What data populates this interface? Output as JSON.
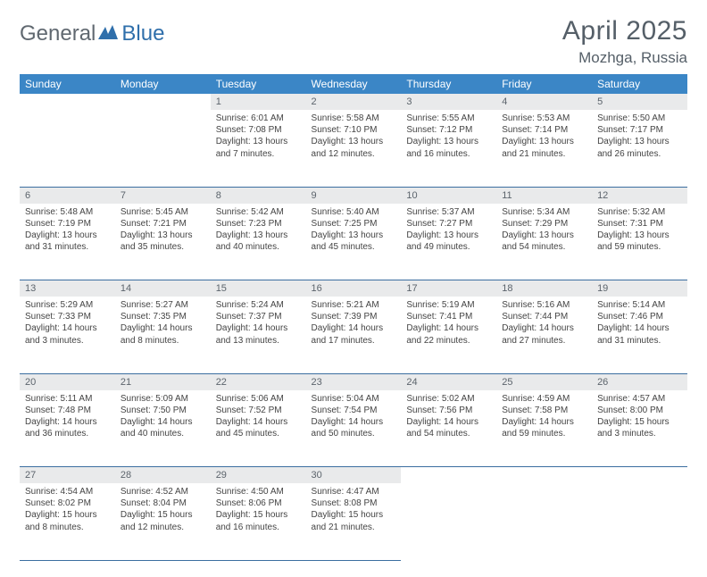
{
  "brand": {
    "part1": "General",
    "part2": "Blue"
  },
  "title": "April 2025",
  "location": "Mozhga, Russia",
  "colors": {
    "header_bg": "#3b86c6",
    "header_fg": "#ffffff",
    "daynum_bg": "#e9eaeb",
    "rule": "#3b6ea0",
    "brand_gray": "#606870",
    "brand_blue": "#2f6fab"
  },
  "weekdays": [
    "Sunday",
    "Monday",
    "Tuesday",
    "Wednesday",
    "Thursday",
    "Friday",
    "Saturday"
  ],
  "weeks": [
    {
      "days": [
        {
          "n": "",
          "sunrise": "",
          "sunset": "",
          "daylight": ""
        },
        {
          "n": "",
          "sunrise": "",
          "sunset": "",
          "daylight": ""
        },
        {
          "n": "1",
          "sunrise": "Sunrise: 6:01 AM",
          "sunset": "Sunset: 7:08 PM",
          "daylight": "Daylight: 13 hours and 7 minutes."
        },
        {
          "n": "2",
          "sunrise": "Sunrise: 5:58 AM",
          "sunset": "Sunset: 7:10 PM",
          "daylight": "Daylight: 13 hours and 12 minutes."
        },
        {
          "n": "3",
          "sunrise": "Sunrise: 5:55 AM",
          "sunset": "Sunset: 7:12 PM",
          "daylight": "Daylight: 13 hours and 16 minutes."
        },
        {
          "n": "4",
          "sunrise": "Sunrise: 5:53 AM",
          "sunset": "Sunset: 7:14 PM",
          "daylight": "Daylight: 13 hours and 21 minutes."
        },
        {
          "n": "5",
          "sunrise": "Sunrise: 5:50 AM",
          "sunset": "Sunset: 7:17 PM",
          "daylight": "Daylight: 13 hours and 26 minutes."
        }
      ]
    },
    {
      "days": [
        {
          "n": "6",
          "sunrise": "Sunrise: 5:48 AM",
          "sunset": "Sunset: 7:19 PM",
          "daylight": "Daylight: 13 hours and 31 minutes."
        },
        {
          "n": "7",
          "sunrise": "Sunrise: 5:45 AM",
          "sunset": "Sunset: 7:21 PM",
          "daylight": "Daylight: 13 hours and 35 minutes."
        },
        {
          "n": "8",
          "sunrise": "Sunrise: 5:42 AM",
          "sunset": "Sunset: 7:23 PM",
          "daylight": "Daylight: 13 hours and 40 minutes."
        },
        {
          "n": "9",
          "sunrise": "Sunrise: 5:40 AM",
          "sunset": "Sunset: 7:25 PM",
          "daylight": "Daylight: 13 hours and 45 minutes."
        },
        {
          "n": "10",
          "sunrise": "Sunrise: 5:37 AM",
          "sunset": "Sunset: 7:27 PM",
          "daylight": "Daylight: 13 hours and 49 minutes."
        },
        {
          "n": "11",
          "sunrise": "Sunrise: 5:34 AM",
          "sunset": "Sunset: 7:29 PM",
          "daylight": "Daylight: 13 hours and 54 minutes."
        },
        {
          "n": "12",
          "sunrise": "Sunrise: 5:32 AM",
          "sunset": "Sunset: 7:31 PM",
          "daylight": "Daylight: 13 hours and 59 minutes."
        }
      ]
    },
    {
      "days": [
        {
          "n": "13",
          "sunrise": "Sunrise: 5:29 AM",
          "sunset": "Sunset: 7:33 PM",
          "daylight": "Daylight: 14 hours and 3 minutes."
        },
        {
          "n": "14",
          "sunrise": "Sunrise: 5:27 AM",
          "sunset": "Sunset: 7:35 PM",
          "daylight": "Daylight: 14 hours and 8 minutes."
        },
        {
          "n": "15",
          "sunrise": "Sunrise: 5:24 AM",
          "sunset": "Sunset: 7:37 PM",
          "daylight": "Daylight: 14 hours and 13 minutes."
        },
        {
          "n": "16",
          "sunrise": "Sunrise: 5:21 AM",
          "sunset": "Sunset: 7:39 PM",
          "daylight": "Daylight: 14 hours and 17 minutes."
        },
        {
          "n": "17",
          "sunrise": "Sunrise: 5:19 AM",
          "sunset": "Sunset: 7:41 PM",
          "daylight": "Daylight: 14 hours and 22 minutes."
        },
        {
          "n": "18",
          "sunrise": "Sunrise: 5:16 AM",
          "sunset": "Sunset: 7:44 PM",
          "daylight": "Daylight: 14 hours and 27 minutes."
        },
        {
          "n": "19",
          "sunrise": "Sunrise: 5:14 AM",
          "sunset": "Sunset: 7:46 PM",
          "daylight": "Daylight: 14 hours and 31 minutes."
        }
      ]
    },
    {
      "days": [
        {
          "n": "20",
          "sunrise": "Sunrise: 5:11 AM",
          "sunset": "Sunset: 7:48 PM",
          "daylight": "Daylight: 14 hours and 36 minutes."
        },
        {
          "n": "21",
          "sunrise": "Sunrise: 5:09 AM",
          "sunset": "Sunset: 7:50 PM",
          "daylight": "Daylight: 14 hours and 40 minutes."
        },
        {
          "n": "22",
          "sunrise": "Sunrise: 5:06 AM",
          "sunset": "Sunset: 7:52 PM",
          "daylight": "Daylight: 14 hours and 45 minutes."
        },
        {
          "n": "23",
          "sunrise": "Sunrise: 5:04 AM",
          "sunset": "Sunset: 7:54 PM",
          "daylight": "Daylight: 14 hours and 50 minutes."
        },
        {
          "n": "24",
          "sunrise": "Sunrise: 5:02 AM",
          "sunset": "Sunset: 7:56 PM",
          "daylight": "Daylight: 14 hours and 54 minutes."
        },
        {
          "n": "25",
          "sunrise": "Sunrise: 4:59 AM",
          "sunset": "Sunset: 7:58 PM",
          "daylight": "Daylight: 14 hours and 59 minutes."
        },
        {
          "n": "26",
          "sunrise": "Sunrise: 4:57 AM",
          "sunset": "Sunset: 8:00 PM",
          "daylight": "Daylight: 15 hours and 3 minutes."
        }
      ]
    },
    {
      "days": [
        {
          "n": "27",
          "sunrise": "Sunrise: 4:54 AM",
          "sunset": "Sunset: 8:02 PM",
          "daylight": "Daylight: 15 hours and 8 minutes."
        },
        {
          "n": "28",
          "sunrise": "Sunrise: 4:52 AM",
          "sunset": "Sunset: 8:04 PM",
          "daylight": "Daylight: 15 hours and 12 minutes."
        },
        {
          "n": "29",
          "sunrise": "Sunrise: 4:50 AM",
          "sunset": "Sunset: 8:06 PM",
          "daylight": "Daylight: 15 hours and 16 minutes."
        },
        {
          "n": "30",
          "sunrise": "Sunrise: 4:47 AM",
          "sunset": "Sunset: 8:08 PM",
          "daylight": "Daylight: 15 hours and 21 minutes."
        },
        {
          "n": "",
          "sunrise": "",
          "sunset": "",
          "daylight": ""
        },
        {
          "n": "",
          "sunrise": "",
          "sunset": "",
          "daylight": ""
        },
        {
          "n": "",
          "sunrise": "",
          "sunset": "",
          "daylight": ""
        }
      ]
    }
  ]
}
